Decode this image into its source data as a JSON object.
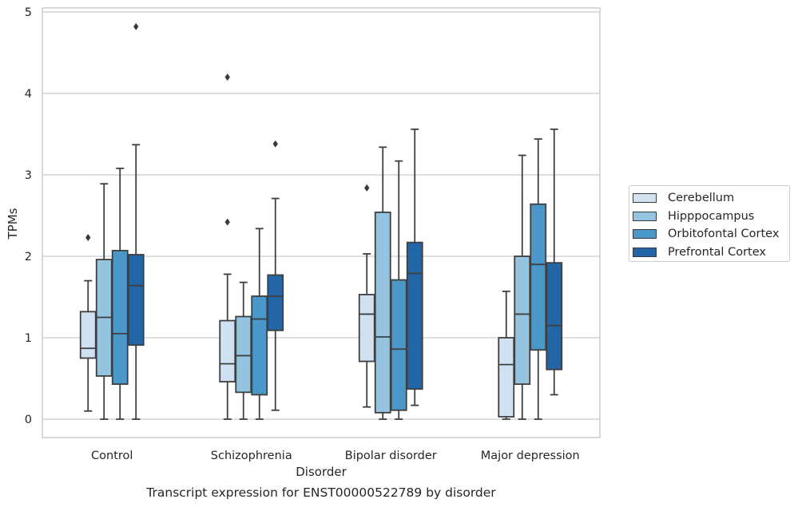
{
  "chart_data": {
    "type": "box",
    "title": "",
    "caption": "Transcript expression for ENST00000522789 by disorder",
    "xlabel": "Disorder",
    "ylabel": "TPMs",
    "ylim": [
      -0.23,
      5.05
    ],
    "yticks": [
      0,
      1,
      2,
      3,
      4,
      5
    ],
    "grid": "horizontal",
    "legend_position": "right",
    "categories": [
      "Control",
      "Schizophrenia",
      "Bipolar disorder",
      "Major depression"
    ],
    "series": [
      {
        "name": "Cerebellum",
        "color": "#d0e1f2",
        "boxes": [
          {
            "whisker_low": 0.1,
            "q1": 0.75,
            "median": 0.87,
            "q3": 1.32,
            "whisker_high": 1.7,
            "outliers": [
              2.23
            ]
          },
          {
            "whisker_low": 0.0,
            "q1": 0.46,
            "median": 0.68,
            "q3": 1.21,
            "whisker_high": 1.78,
            "outliers": [
              2.42,
              4.2
            ]
          },
          {
            "whisker_low": 0.15,
            "q1": 0.71,
            "median": 1.29,
            "q3": 1.53,
            "whisker_high": 2.03,
            "outliers": [
              2.84
            ]
          },
          {
            "whisker_low": 0.0,
            "q1": 0.03,
            "median": 0.67,
            "q3": 1.0,
            "whisker_high": 1.57,
            "outliers": []
          }
        ]
      },
      {
        "name": "Hipppocampus",
        "color": "#94c4df",
        "boxes": [
          {
            "whisker_low": 0.0,
            "q1": 0.53,
            "median": 1.25,
            "q3": 1.96,
            "whisker_high": 2.89,
            "outliers": []
          },
          {
            "whisker_low": 0.0,
            "q1": 0.33,
            "median": 0.78,
            "q3": 1.26,
            "whisker_high": 1.68,
            "outliers": []
          },
          {
            "whisker_low": 0.0,
            "q1": 0.08,
            "median": 1.01,
            "q3": 2.54,
            "whisker_high": 3.34,
            "outliers": []
          },
          {
            "whisker_low": 0.0,
            "q1": 0.43,
            "median": 1.29,
            "q3": 2.0,
            "whisker_high": 3.24,
            "outliers": []
          }
        ]
      },
      {
        "name": "Orbitofontal Cortex",
        "color": "#4a98c9",
        "boxes": [
          {
            "whisker_low": 0.0,
            "q1": 0.43,
            "median": 1.05,
            "q3": 2.07,
            "whisker_high": 3.08,
            "outliers": []
          },
          {
            "whisker_low": 0.0,
            "q1": 0.3,
            "median": 1.23,
            "q3": 1.51,
            "whisker_high": 2.34,
            "outliers": []
          },
          {
            "whisker_low": 0.0,
            "q1": 0.11,
            "median": 0.86,
            "q3": 1.71,
            "whisker_high": 3.17,
            "outliers": []
          },
          {
            "whisker_low": 0.0,
            "q1": 0.85,
            "median": 1.9,
            "q3": 2.64,
            "whisker_high": 3.44,
            "outliers": []
          }
        ]
      },
      {
        "name": "Prefrontal Cortex",
        "color": "#2366a8",
        "boxes": [
          {
            "whisker_low": 0.0,
            "q1": 0.91,
            "median": 1.64,
            "q3": 2.02,
            "whisker_high": 3.37,
            "outliers": [
              4.82
            ]
          },
          {
            "whisker_low": 0.11,
            "q1": 1.09,
            "median": 1.51,
            "q3": 1.77,
            "whisker_high": 2.71,
            "outliers": [
              3.38
            ]
          },
          {
            "whisker_low": 0.17,
            "q1": 0.37,
            "median": 1.79,
            "q3": 2.17,
            "whisker_high": 3.56,
            "outliers": []
          },
          {
            "whisker_low": 0.3,
            "q1": 0.61,
            "median": 1.15,
            "q3": 1.92,
            "whisker_high": 3.56,
            "outliers": []
          }
        ]
      }
    ]
  }
}
